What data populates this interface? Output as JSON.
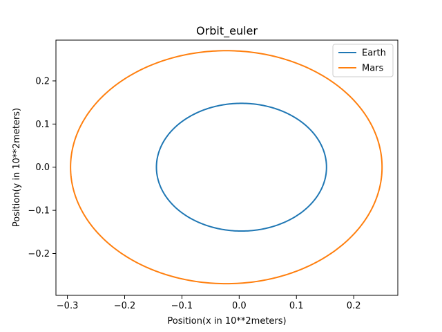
{
  "chart_data": {
    "type": "line",
    "title": "Orbit_euler",
    "xlabel": "Position(x in 10**2meters)",
    "ylabel": "Position(y in 10**2meters)",
    "xlim": [
      -0.32,
      0.277
    ],
    "ylim": [
      -0.297,
      0.2945
    ],
    "xticks": [
      -0.3,
      -0.2,
      -0.1,
      0.0,
      0.1,
      0.2
    ],
    "xtick_labels": [
      "−0.3",
      "−0.2",
      "−0.1",
      "0.0",
      "0.1",
      "0.2"
    ],
    "yticks": [
      -0.2,
      -0.1,
      0.0,
      0.1,
      0.2
    ],
    "ytick_labels": [
      "−0.2",
      "−0.1",
      "0.0",
      "0.1",
      "0.2"
    ],
    "grid": false,
    "legend_position": "top-right",
    "series": [
      {
        "name": "Earth",
        "color": "#1f77b4",
        "shape": "ellipse",
        "center": [
          0.004,
          0.0
        ],
        "semi_axis_x": 0.1485,
        "semi_axis_y": 0.148,
        "x_range": [
          -0.1445,
          0.1525
        ],
        "y_range": [
          -0.148,
          0.148
        ]
      },
      {
        "name": "Mars",
        "color": "#ff7f0e",
        "shape": "ellipse",
        "center": [
          -0.0225,
          0.0
        ],
        "semi_axis_x": 0.272,
        "semi_axis_y": 0.27,
        "x_range": [
          -0.2945,
          0.2495
        ],
        "y_range": [
          -0.27,
          0.27
        ]
      }
    ]
  }
}
